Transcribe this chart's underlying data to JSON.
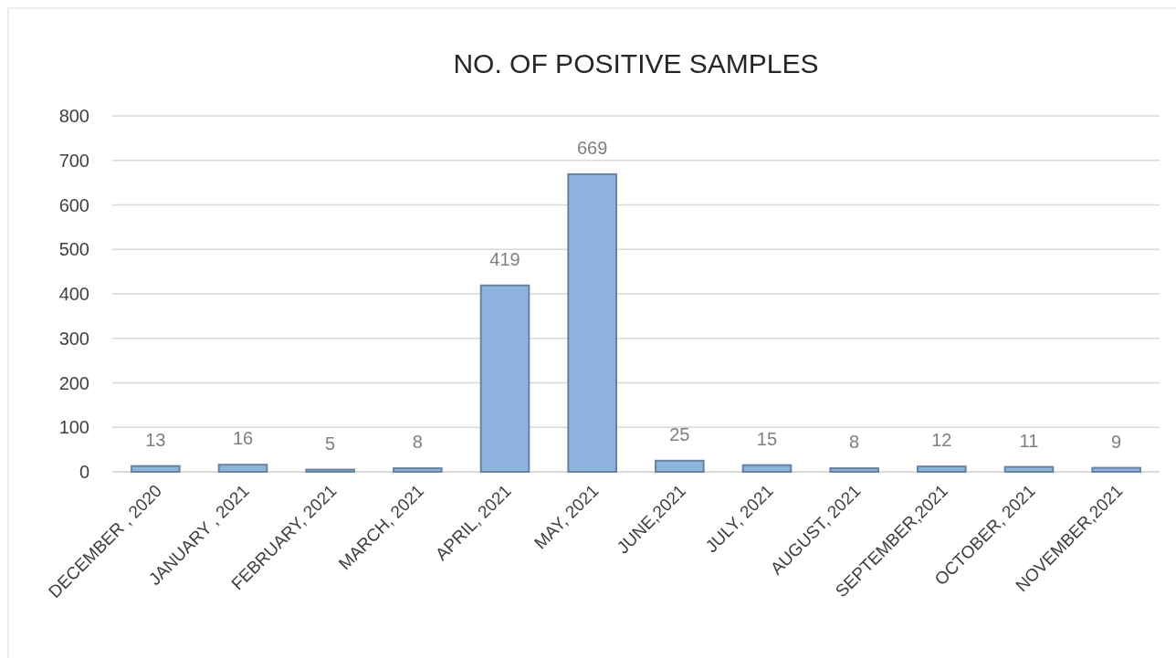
{
  "chart_data": {
    "type": "bar",
    "title": "NO. OF POSITIVE SAMPLES",
    "categories": [
      "DECEMBER , 2020",
      "JANUARY , 2021",
      "FEBRUARY, 2021",
      "MARCH, 2021",
      "APRIL, 2021",
      "MAY, 2021",
      "JUNE,2021",
      "JULY, 2021",
      "AUGUST, 2021",
      "SEPTEMBER,2021",
      "OCTOBER, 2021",
      "NOVEMBER,2021"
    ],
    "values": [
      13,
      16,
      5,
      8,
      419,
      669,
      25,
      15,
      8,
      12,
      11,
      9
    ],
    "color": "#8fb3df",
    "ylim": [
      0,
      800
    ],
    "yticks": [
      0,
      100,
      200,
      300,
      400,
      500,
      600,
      700,
      800
    ],
    "grid": "y",
    "data_labels": true
  }
}
